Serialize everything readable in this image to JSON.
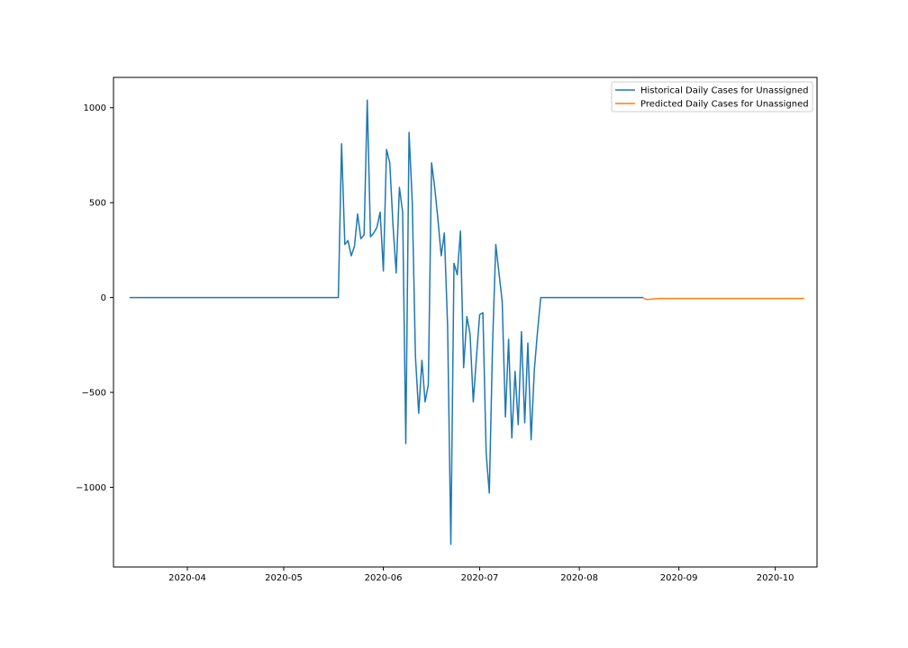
{
  "chart_data": {
    "type": "line",
    "title": "",
    "xlabel": "",
    "ylabel": "",
    "xlim": [
      "2020-03-09",
      "2020-10-14"
    ],
    "ylim": [
      -1420,
      1160
    ],
    "x_ticks": [
      "2020-04",
      "2020-05",
      "2020-06",
      "2020-07",
      "2020-08",
      "2020-09",
      "2020-10"
    ],
    "y_ticks": [
      1000,
      500,
      0,
      -500,
      -1000
    ],
    "y_tick_labels": [
      "1000",
      "500",
      "0",
      "−500",
      "−1000"
    ],
    "grid": false,
    "legend_position": "top-right",
    "series": [
      {
        "name": "Historical Daily Cases for Unassigned",
        "color": "#1f77b4",
        "points": [
          [
            "2020-03-14",
            0
          ],
          [
            "2020-05-18",
            0
          ],
          [
            "2020-05-19",
            810
          ],
          [
            "2020-05-20",
            280
          ],
          [
            "2020-05-21",
            300
          ],
          [
            "2020-05-22",
            220
          ],
          [
            "2020-05-23",
            270
          ],
          [
            "2020-05-24",
            440
          ],
          [
            "2020-05-25",
            310
          ],
          [
            "2020-05-26",
            330
          ],
          [
            "2020-05-27",
            1040
          ],
          [
            "2020-05-28",
            320
          ],
          [
            "2020-05-29",
            340
          ],
          [
            "2020-05-30",
            370
          ],
          [
            "2020-05-31",
            450
          ],
          [
            "2020-06-01",
            140
          ],
          [
            "2020-06-02",
            780
          ],
          [
            "2020-06-03",
            710
          ],
          [
            "2020-06-04",
            380
          ],
          [
            "2020-06-05",
            130
          ],
          [
            "2020-06-06",
            580
          ],
          [
            "2020-06-07",
            450
          ],
          [
            "2020-06-08",
            -770
          ],
          [
            "2020-06-09",
            870
          ],
          [
            "2020-06-10",
            500
          ],
          [
            "2020-06-11",
            -310
          ],
          [
            "2020-06-12",
            -610
          ],
          [
            "2020-06-13",
            -330
          ],
          [
            "2020-06-14",
            -550
          ],
          [
            "2020-06-15",
            -460
          ],
          [
            "2020-06-16",
            710
          ],
          [
            "2020-06-17",
            580
          ],
          [
            "2020-06-18",
            410
          ],
          [
            "2020-06-19",
            220
          ],
          [
            "2020-06-20",
            340
          ],
          [
            "2020-06-21",
            -150
          ],
          [
            "2020-06-22",
            -1300
          ],
          [
            "2020-06-23",
            180
          ],
          [
            "2020-06-24",
            120
          ],
          [
            "2020-06-25",
            350
          ],
          [
            "2020-06-26",
            -370
          ],
          [
            "2020-06-27",
            -100
          ],
          [
            "2020-06-28",
            -190
          ],
          [
            "2020-06-29",
            -550
          ],
          [
            "2020-06-30",
            -310
          ],
          [
            "2020-07-01",
            -90
          ],
          [
            "2020-07-02",
            -80
          ],
          [
            "2020-07-03",
            -820
          ],
          [
            "2020-07-04",
            -1030
          ],
          [
            "2020-07-05",
            -250
          ],
          [
            "2020-07-06",
            280
          ],
          [
            "2020-07-07",
            130
          ],
          [
            "2020-07-08",
            -20
          ],
          [
            "2020-07-09",
            -630
          ],
          [
            "2020-07-10",
            -220
          ],
          [
            "2020-07-11",
            -740
          ],
          [
            "2020-07-12",
            -390
          ],
          [
            "2020-07-13",
            -670
          ],
          [
            "2020-07-14",
            -180
          ],
          [
            "2020-07-15",
            -660
          ],
          [
            "2020-07-16",
            -240
          ],
          [
            "2020-07-17",
            -750
          ],
          [
            "2020-07-18",
            -380
          ],
          [
            "2020-07-19",
            -180
          ],
          [
            "2020-07-20",
            0
          ],
          [
            "2020-08-21",
            0
          ]
        ]
      },
      {
        "name": "Predicted Daily Cases for Unassigned",
        "color": "#ff7f0e",
        "points": [
          [
            "2020-08-21",
            -4
          ],
          [
            "2020-08-22",
            -10
          ],
          [
            "2020-08-23",
            -9
          ],
          [
            "2020-08-24",
            -7
          ],
          [
            "2020-08-25",
            -6
          ],
          [
            "2020-08-26",
            -5
          ],
          [
            "2020-08-28",
            -5
          ],
          [
            "2020-09-05",
            -5
          ],
          [
            "2020-09-20",
            -5
          ],
          [
            "2020-10-05",
            -5
          ],
          [
            "2020-10-10",
            -5
          ]
        ]
      }
    ]
  }
}
